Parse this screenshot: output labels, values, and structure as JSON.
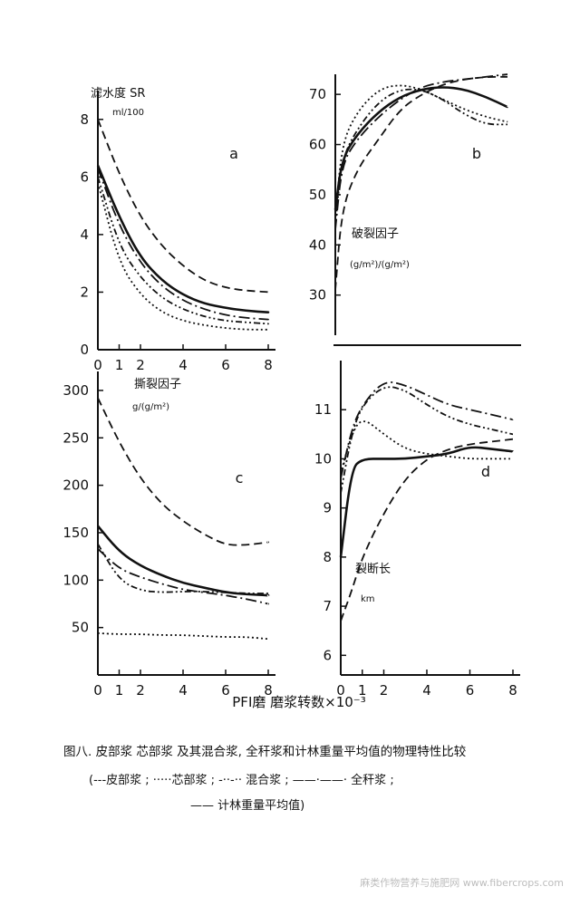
{
  "figure": {
    "xlabel": "PFI磨 磨浆转数×10⁻³",
    "caption_line1": "图八. 皮部浆  芯部浆  及其混合浆, 全秆浆和计林重量平均值的物理特性比较",
    "caption_line2": "(---皮部浆 ; ·····芯部浆 ; -··-·· 混合浆 ; ——·——· 全秆浆 ;",
    "caption_line3": "—— 计林重量平均值)",
    "watermark": "麻类作物营养与施肥网 www.fibercrops.com",
    "line_color": "#111111",
    "background": "#ffffff"
  },
  "chart_data": [
    {
      "panel": "a",
      "type": "line",
      "ylabel": "滤水度 SR",
      "yunit": "ml/100",
      "xlim": [
        0,
        8
      ],
      "ylim": [
        0,
        9
      ],
      "yticks": [
        0,
        2,
        4,
        6,
        8
      ],
      "xticks": [
        0,
        1,
        2,
        4,
        6,
        8
      ],
      "series": [
        {
          "name": "皮部浆",
          "style": "dashed",
          "x": [
            0,
            1,
            2,
            3,
            4,
            5,
            6,
            7,
            8
          ],
          "y": [
            8.0,
            6.1,
            4.6,
            3.6,
            2.9,
            2.4,
            2.15,
            2.05,
            2.0
          ]
        },
        {
          "name": "芯部浆",
          "style": "dotted",
          "x": [
            0,
            1,
            2,
            3,
            4,
            5,
            6,
            7,
            8
          ],
          "y": [
            5.8,
            3.0,
            1.9,
            1.3,
            1.0,
            0.85,
            0.75,
            0.7,
            0.7
          ]
        },
        {
          "name": "混合浆",
          "style": "dashdotdot",
          "x": [
            0,
            1,
            2,
            3,
            4,
            5,
            6,
            7,
            8
          ],
          "y": [
            6.0,
            3.6,
            2.5,
            1.8,
            1.4,
            1.15,
            1.0,
            0.95,
            0.9
          ]
        },
        {
          "name": "全秆浆",
          "style": "dashdot",
          "x": [
            0,
            1,
            2,
            3,
            4,
            5,
            6,
            7,
            8
          ],
          "y": [
            6.3,
            4.3,
            3.0,
            2.2,
            1.7,
            1.4,
            1.2,
            1.1,
            1.05
          ]
        },
        {
          "name": "计林重量平均值",
          "style": "solid",
          "x": [
            0,
            1,
            2,
            3,
            4,
            5,
            6,
            7,
            8
          ],
          "y": [
            6.4,
            4.6,
            3.2,
            2.4,
            1.9,
            1.6,
            1.45,
            1.35,
            1.3
          ]
        }
      ]
    },
    {
      "panel": "b",
      "type": "line",
      "ylabel": "破裂因子",
      "yunit": "(g/m²)/(g/m²)",
      "xlim": [
        0,
        8
      ],
      "ylim": [
        22,
        74
      ],
      "yticks": [
        30,
        40,
        50,
        60,
        70
      ],
      "xticks": [],
      "series": [
        {
          "name": "皮部浆",
          "style": "dashed",
          "x": [
            0,
            0.3,
            1,
            2,
            3,
            4,
            5,
            6,
            7,
            8
          ],
          "y": [
            31,
            47,
            55,
            61,
            67,
            70,
            72,
            73,
            73.5,
            73.5
          ]
        },
        {
          "name": "芯部浆",
          "style": "dotted",
          "x": [
            0,
            0.3,
            1,
            2,
            3,
            4,
            5,
            6,
            7,
            8
          ],
          "y": [
            45,
            60,
            66.5,
            71,
            72,
            71,
            69,
            67,
            65.5,
            64.5
          ]
        },
        {
          "name": "混合浆",
          "style": "dashdotdot",
          "x": [
            0,
            0.3,
            1,
            2,
            3,
            4,
            5,
            6,
            7,
            8
          ],
          "y": [
            44,
            57,
            63,
            68.5,
            71,
            71,
            69,
            66,
            64,
            64
          ]
        },
        {
          "name": "全秆浆",
          "style": "dashdot",
          "x": [
            0,
            0.3,
            1,
            2,
            3,
            4,
            5,
            6,
            7,
            8
          ],
          "y": [
            43,
            56,
            61,
            65.5,
            69,
            71.5,
            72.5,
            73,
            73.5,
            74
          ]
        },
        {
          "name": "计林重量平均值",
          "style": "solid",
          "x": [
            0,
            0.3,
            1,
            2,
            3,
            4,
            5,
            6,
            7,
            8
          ],
          "y": [
            47,
            57,
            62,
            66.5,
            69.5,
            71,
            71.5,
            71,
            69.5,
            67.5
          ]
        }
      ]
    },
    {
      "panel": "c",
      "type": "line",
      "ylabel": "撕裂因子",
      "yunit": "g/(g/m²)",
      "xlim": [
        0,
        8
      ],
      "ylim": [
        0,
        320
      ],
      "yticks": [
        50,
        100,
        150,
        200,
        250,
        300
      ],
      "xticks": [
        0,
        1,
        2,
        4,
        6,
        8
      ],
      "series": [
        {
          "name": "皮部浆",
          "style": "dashed",
          "x": [
            0,
            1,
            2,
            3,
            4,
            5,
            6,
            7,
            8
          ],
          "y": [
            292,
            245,
            207,
            180,
            162,
            148,
            137,
            137,
            140
          ]
        },
        {
          "name": "芯部浆",
          "style": "dotted",
          "x": [
            0,
            1,
            2,
            3,
            4,
            5,
            6,
            7,
            8
          ],
          "y": [
            44,
            43,
            43,
            42,
            42,
            41,
            40,
            40,
            38
          ]
        },
        {
          "name": "混合浆",
          "style": "dashdotdot",
          "x": [
            0,
            1,
            2,
            3,
            4,
            5,
            6,
            7,
            8
          ],
          "y": [
            138,
            100,
            89,
            87,
            88,
            88,
            87,
            86,
            86
          ]
        },
        {
          "name": "全秆浆",
          "style": "dashdot",
          "x": [
            0,
            1,
            2,
            3,
            4,
            5,
            6,
            7,
            8
          ],
          "y": [
            133,
            112,
            103,
            96,
            90,
            87,
            84,
            80,
            75
          ]
        },
        {
          "name": "计林重量平均值",
          "style": "solid",
          "x": [
            0,
            1,
            2,
            3,
            4,
            5,
            6,
            7,
            8
          ],
          "y": [
            157,
            130,
            115,
            105,
            97,
            92,
            87,
            85,
            84
          ]
        }
      ]
    },
    {
      "panel": "d",
      "type": "line",
      "ylabel": "裂断长",
      "yunit": "km",
      "xlim": [
        0,
        8
      ],
      "ylim": [
        5.6,
        12
      ],
      "yticks": [
        6,
        7,
        8,
        9,
        10,
        11
      ],
      "xticks": [
        0,
        1,
        2,
        4,
        6,
        8
      ],
      "series": [
        {
          "name": "皮部浆",
          "style": "dashed",
          "x": [
            0,
            0.5,
            1,
            2,
            3,
            4,
            5,
            6,
            7,
            8
          ],
          "y": [
            6.7,
            7.3,
            8.0,
            8.9,
            9.6,
            10.0,
            10.2,
            10.3,
            10.35,
            10.4
          ]
        },
        {
          "name": "芯部浆",
          "style": "dotted",
          "x": [
            0,
            0.5,
            1,
            2,
            3,
            4,
            5,
            6,
            7,
            8
          ],
          "y": [
            9.7,
            10.5,
            10.85,
            10.5,
            10.2,
            10.1,
            10.05,
            10.0,
            10.0,
            10.0
          ]
        },
        {
          "name": "混合浆",
          "style": "dashdotdot",
          "x": [
            0,
            0.5,
            1,
            2,
            3,
            4,
            5,
            6,
            7,
            8
          ],
          "y": [
            9.3,
            10.5,
            11.1,
            11.5,
            11.4,
            11.1,
            10.85,
            10.7,
            10.6,
            10.5
          ]
        },
        {
          "name": "全秆浆",
          "style": "dashdot",
          "x": [
            0,
            0.5,
            1,
            2,
            3,
            4,
            5,
            6,
            7,
            8
          ],
          "y": [
            9.6,
            10.6,
            11.1,
            11.6,
            11.5,
            11.3,
            11.1,
            11.0,
            10.9,
            10.8
          ]
        },
        {
          "name": "计林重量平均值",
          "style": "solid",
          "x": [
            0,
            0.5,
            1,
            2,
            3,
            4,
            5,
            6,
            7,
            8
          ],
          "y": [
            8.0,
            9.8,
            10.0,
            10.0,
            10.0,
            10.05,
            10.1,
            10.25,
            10.2,
            10.15
          ]
        }
      ]
    }
  ]
}
